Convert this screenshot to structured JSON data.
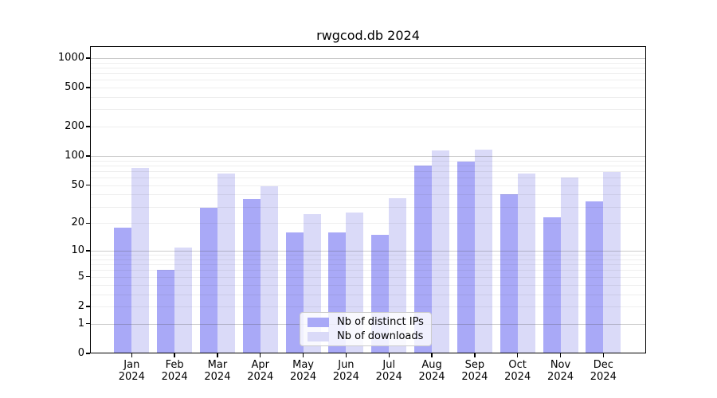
{
  "chart_data": {
    "type": "bar",
    "title": "rwgcod.db 2024",
    "categories": [
      "Jan 2024",
      "Feb 2024",
      "Mar 2024",
      "Apr 2024",
      "May 2024",
      "Jun 2024",
      "Jul 2024",
      "Aug 2024",
      "Sep 2024",
      "Oct 2024",
      "Nov 2024",
      "Dec 2024"
    ],
    "series": [
      {
        "name": "Nb of distinct IPs",
        "color": "#a9a9f7",
        "values": [
          18,
          6,
          29,
          36,
          16,
          16,
          15,
          80,
          88,
          40,
          23,
          34
        ]
      },
      {
        "name": "Nb of downloads",
        "color": "#dadaf8",
        "values": [
          76,
          11,
          66,
          49,
          25,
          26,
          37,
          114,
          116,
          66,
          60,
          69
        ]
      }
    ],
    "xlabel": "",
    "ylabel": "",
    "yscale": "log1p",
    "yticks": [
      0,
      1,
      2,
      5,
      10,
      20,
      50,
      100,
      200,
      500,
      1000
    ],
    "ylim": [
      0,
      1320
    ],
    "grid": "both",
    "legend_position": "lower center"
  }
}
